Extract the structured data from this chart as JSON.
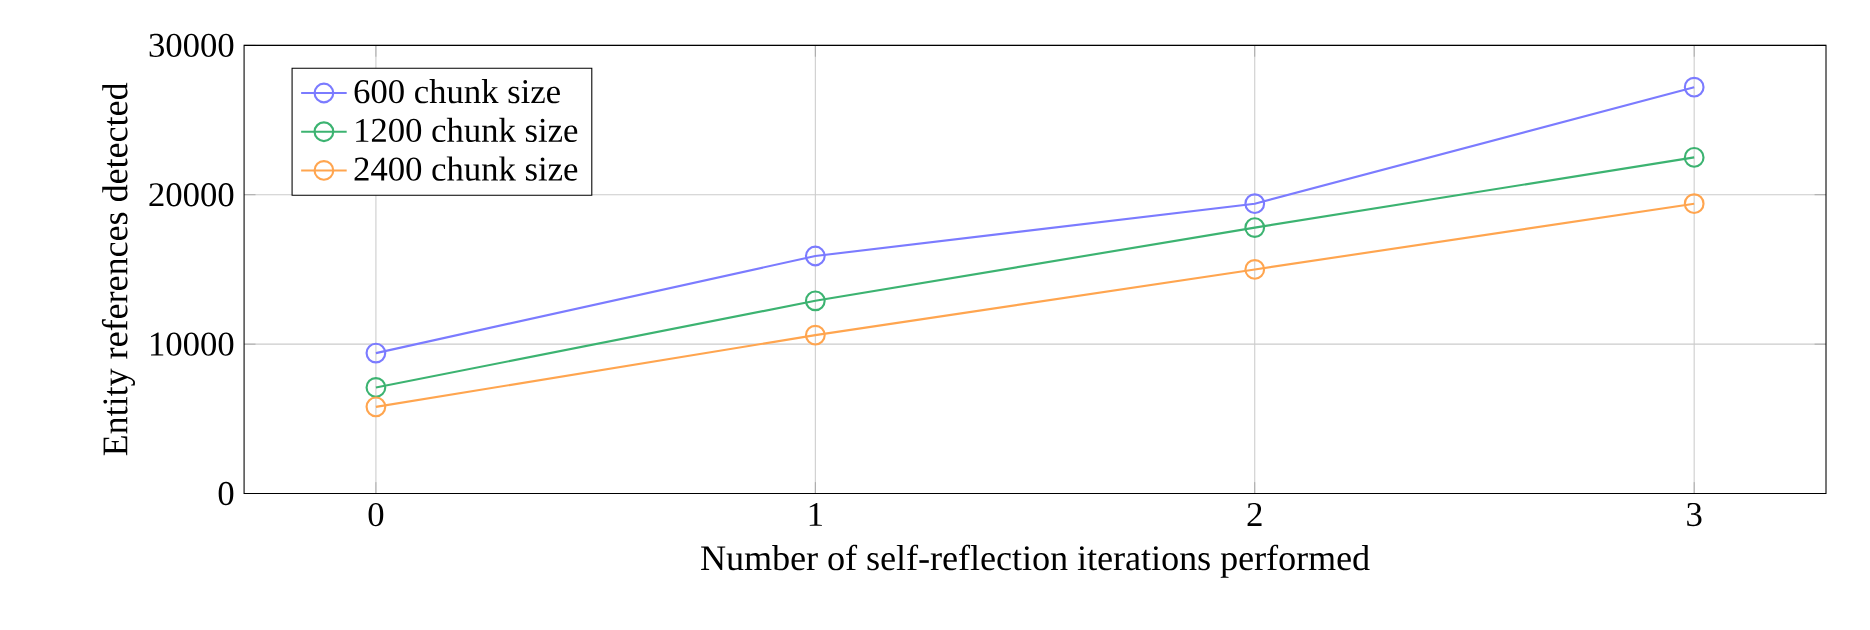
{
  "chart_data": {
    "type": "line",
    "xlabel": "Number of self-reflection iterations performed",
    "ylabel": "Entity references detected",
    "x": [
      0,
      1,
      2,
      3
    ],
    "xlim": [
      -0.3,
      3.3
    ],
    "xticks": [
      0,
      1,
      2,
      3
    ],
    "ylim": [
      0,
      30000
    ],
    "yticks": [
      0,
      10000,
      20000,
      30000
    ],
    "grid": true,
    "legend": "top left",
    "marker": "circle",
    "line_style": "solid",
    "series": [
      {
        "name": "600 chunk size",
        "color": "#7b7bff",
        "values": [
          9400,
          15900,
          19400,
          27200
        ]
      },
      {
        "name": "1200 chunk size",
        "color": "#3cb371",
        "values": [
          7100,
          12900,
          17800,
          22500
        ]
      },
      {
        "name": "2400 chunk size",
        "color": "#ffa54f",
        "values": [
          5800,
          10600,
          15000,
          19400
        ]
      }
    ]
  }
}
